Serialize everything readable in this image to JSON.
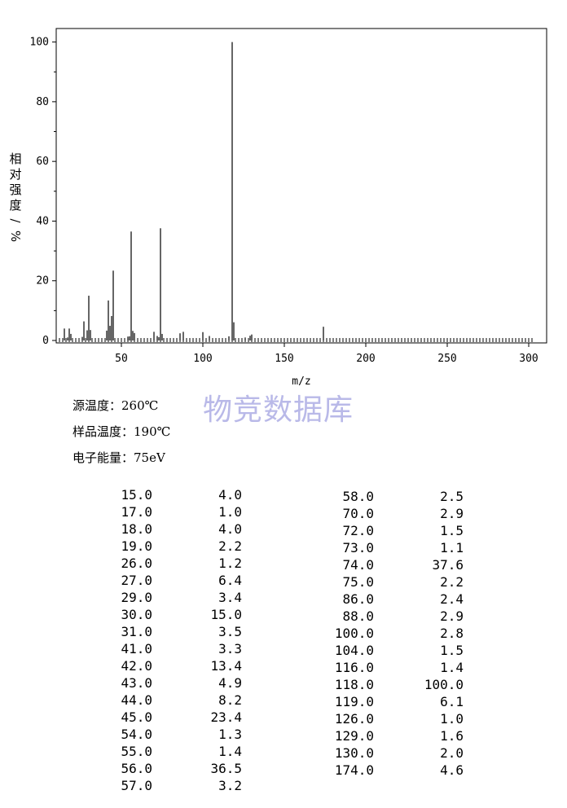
{
  "chart_data": {
    "type": "bar",
    "xlabel": "m/z",
    "ylabel": "相对强度/%",
    "xlim": [
      10,
      305
    ],
    "ylim": [
      0,
      105
    ],
    "x_ticks": [
      50,
      100,
      150,
      200,
      250,
      300
    ],
    "y_ticks": [
      0,
      20,
      40,
      60,
      80,
      100
    ],
    "x": [
      15,
      17,
      18,
      19,
      26,
      27,
      29,
      30,
      31,
      41,
      42,
      43,
      44,
      45,
      54,
      55,
      56,
      57,
      58,
      70,
      72,
      73,
      74,
      75,
      86,
      88,
      100,
      104,
      116,
      118,
      119,
      126,
      129,
      130,
      174
    ],
    "values": [
      4.0,
      1.0,
      4.0,
      2.2,
      1.2,
      6.4,
      3.4,
      15.0,
      3.5,
      3.3,
      13.4,
      4.9,
      8.2,
      23.4,
      1.3,
      1.4,
      36.5,
      3.2,
      2.5,
      2.9,
      1.5,
      1.1,
      37.6,
      2.2,
      2.4,
      2.9,
      2.8,
      1.5,
      1.4,
      100.0,
      6.1,
      1.0,
      1.6,
      2.0,
      4.6
    ]
  },
  "watermark": "物竞数据库",
  "conditions": [
    {
      "label": "源温度：",
      "value": "260℃"
    },
    {
      "label": "样品温度：",
      "value": "190℃"
    },
    {
      "label": "电子能量：",
      "value": "75eV"
    }
  ],
  "table": {
    "left_mz": [
      "15.0",
      "17.0",
      "18.0",
      "19.0",
      "26.0",
      "27.0",
      "29.0",
      "30.0",
      "31.0",
      "41.0",
      "42.0",
      "43.0",
      "44.0",
      "45.0",
      "54.0",
      "55.0",
      "56.0",
      "57.0"
    ],
    "left_int": [
      "4.0",
      "1.0",
      "4.0",
      "2.2",
      "1.2",
      "6.4",
      "3.4",
      "15.0",
      "3.5",
      "3.3",
      "13.4",
      "4.9",
      "8.2",
      "23.4",
      "1.3",
      "1.4",
      "36.5",
      "3.2"
    ],
    "right_mz": [
      "58.0",
      "70.0",
      "72.0",
      "73.0",
      "74.0",
      "75.0",
      "86.0",
      "88.0",
      "100.0",
      "104.0",
      "116.0",
      "118.0",
      "119.0",
      "126.0",
      "129.0",
      "130.0",
      "174.0"
    ],
    "right_int": [
      "2.5",
      "2.9",
      "1.5",
      "1.1",
      "37.6",
      "2.2",
      "2.4",
      "2.9",
      "2.8",
      "1.5",
      "1.4",
      "100.0",
      "6.1",
      "1.0",
      "1.6",
      "2.0",
      "4.6"
    ]
  }
}
